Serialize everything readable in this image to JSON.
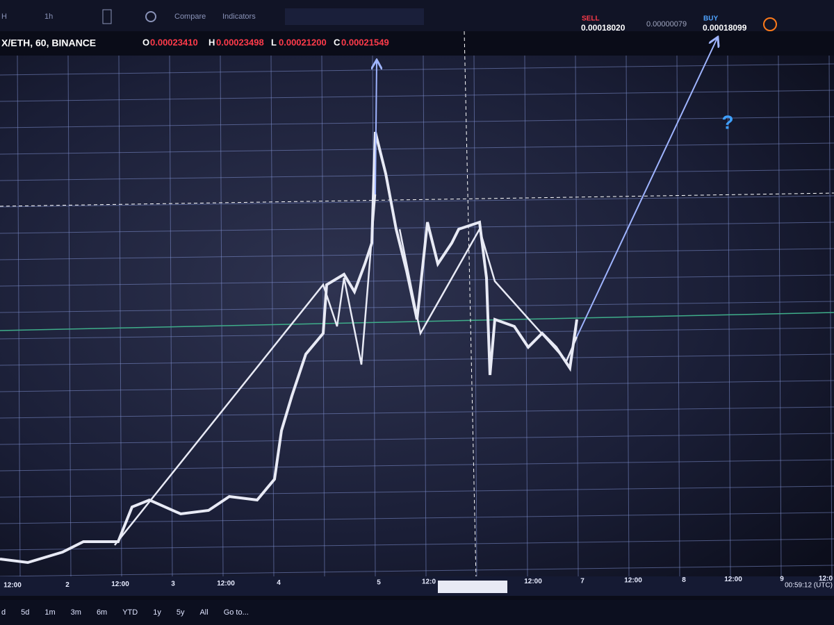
{
  "toolbar": {
    "symbol_short": "H",
    "interval": "1h",
    "compare": "Compare",
    "indicators": "Indicators"
  },
  "legend": {
    "symbol": "X/ETH, 60, BINANCE",
    "open_label": "O",
    "open": "0.00023410",
    "high_label": "H",
    "high": "0.00023498",
    "low_label": "L",
    "low": "0.00021200",
    "close_label": "C",
    "close": "0.00021549"
  },
  "trade": {
    "sell_label": "SELL",
    "sell": "0.00018020",
    "spread": "0.00000079",
    "buy_label": "BUY",
    "buy": "0.00018099"
  },
  "annotation": "?",
  "time_axis": [
    "12:00",
    "2",
    "12:00",
    "3",
    "12:00",
    "4",
    "5",
    "12:0",
    "12:00",
    "7",
    "12:00",
    "8",
    "12:00",
    "9",
    "12:0"
  ],
  "clock": "00:59:12 (UTC)",
  "ranges": [
    "d",
    "5d",
    "1m",
    "3m",
    "6m",
    "YTD",
    "1y",
    "5y",
    "All",
    "Go to..."
  ]
}
